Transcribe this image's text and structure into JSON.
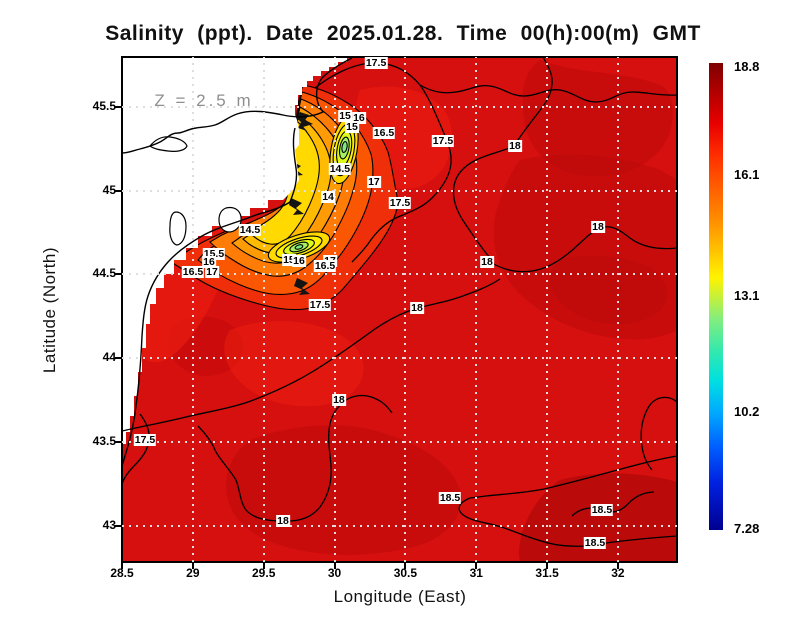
{
  "title": "Salinity (ppt). Date 2025.01.28. Time 00(h):00(m) GMT",
  "annotation": {
    "depth": "Z = 2.5 m"
  },
  "axes": {
    "x": {
      "label": "Longitude (East)",
      "ticks": [
        28.5,
        29,
        29.5,
        30,
        30.5,
        31,
        31.5,
        32
      ],
      "min": 28.5,
      "max": 32.42
    },
    "y": {
      "label": "Latitude (North)",
      "ticks": [
        45.5,
        45,
        44.5,
        44,
        43.5,
        43
      ],
      "min": 42.78,
      "max": 45.8
    }
  },
  "colorbar": {
    "min": 7.28,
    "max": 18.8,
    "ticks": [
      18.8,
      16.1,
      13.1,
      10.2,
      7.28
    ],
    "colormap": "jet"
  },
  "chart_data": {
    "type": "heatmap",
    "title": "Salinity (ppt). Date 2025.01.28. Time 00(h):00(m) GMT",
    "variable": "Salinity",
    "units": "ppt",
    "date": "2025.01.28",
    "time": "00(h):00(m) GMT",
    "depth_label": "Z = 2.5 m",
    "xlabel": "Longitude (East)",
    "ylabel": "Latitude (North)",
    "xlim": [
      28.5,
      32.42
    ],
    "ylim": [
      42.78,
      45.8
    ],
    "value_range": [
      7.28,
      18.8
    ],
    "colorbar_ticks": [
      18.8,
      16.1,
      13.1,
      10.2,
      7.28
    ],
    "contour_interval": 0.5,
    "contour_levels": [
      14,
      14.5,
      15,
      15.5,
      16,
      16.5,
      17,
      17.5,
      18,
      18.5
    ],
    "grid": true,
    "contour_labels": [
      {
        "v": 17.5,
        "lon": 30.293,
        "lat": 45.763
      },
      {
        "v": 15,
        "lon": 30.074,
        "lat": 45.446
      },
      {
        "v": 16,
        "lon": 30.172,
        "lat": 45.434
      },
      {
        "v": 15,
        "lon": 30.123,
        "lat": 45.381
      },
      {
        "v": 16.5,
        "lon": 30.349,
        "lat": 45.345
      },
      {
        "v": 17.5,
        "lon": 30.765,
        "lat": 45.297
      },
      {
        "v": 18,
        "lon": 31.273,
        "lat": 45.267
      },
      {
        "v": 14.5,
        "lon": 30.038,
        "lat": 45.13
      },
      {
        "v": 17,
        "lon": 30.278,
        "lat": 45.052
      },
      {
        "v": 14,
        "lon": 29.954,
        "lat": 44.962
      },
      {
        "v": 17.5,
        "lon": 30.462,
        "lat": 44.927
      },
      {
        "v": 18,
        "lon": 31.859,
        "lat": 44.783
      },
      {
        "v": 14.5,
        "lon": 29.403,
        "lat": 44.765
      },
      {
        "v": 15.5,
        "lon": 29.149,
        "lat": 44.622
      },
      {
        "v": 16,
        "lon": 29.114,
        "lat": 44.574
      },
      {
        "v": 15,
        "lon": 29.678,
        "lat": 44.586
      },
      {
        "v": 16,
        "lon": 29.749,
        "lat": 44.58
      },
      {
        "v": 16.5,
        "lon": 29.001,
        "lat": 44.514
      },
      {
        "v": 17,
        "lon": 29.135,
        "lat": 44.514
      },
      {
        "v": 17,
        "lon": 29.968,
        "lat": 44.58
      },
      {
        "v": 16.5,
        "lon": 29.933,
        "lat": 44.55
      },
      {
        "v": 18,
        "lon": 31.076,
        "lat": 44.574
      },
      {
        "v": 17.5,
        "lon": 29.897,
        "lat": 44.317
      },
      {
        "v": 18,
        "lon": 30.582,
        "lat": 44.299
      },
      {
        "v": 18,
        "lon": 30.031,
        "lat": 43.75
      },
      {
        "v": 17.5,
        "lon": 28.662,
        "lat": 43.511
      },
      {
        "v": 18,
        "lon": 29.636,
        "lat": 43.027
      },
      {
        "v": 18.5,
        "lon": 30.815,
        "lat": 43.164
      },
      {
        "v": 18.5,
        "lon": 31.887,
        "lat": 43.093
      },
      {
        "v": 18.5,
        "lon": 31.838,
        "lat": 42.895
      }
    ]
  }
}
